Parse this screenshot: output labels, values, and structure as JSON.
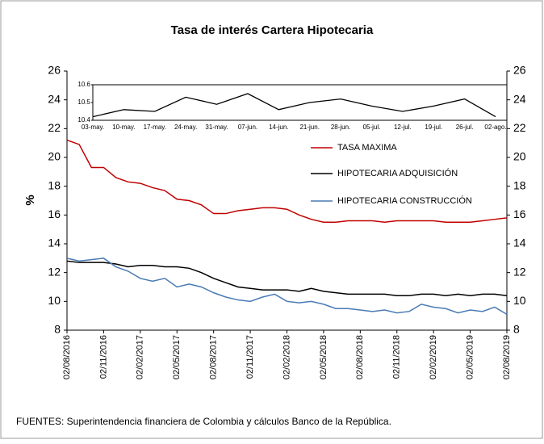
{
  "chart_data": [
    {
      "type": "line",
      "title": "Tasa de interés Cartera Hipotecaria",
      "y_label": "%",
      "note": "FUENTES: Superintendencia financiera de Colombia y cálculos Banco de la República.",
      "categories": [
        "02/08/2016",
        null,
        null,
        "02/11/2016",
        null,
        null,
        "02/02/2017",
        null,
        null,
        "02/05/2017",
        null,
        null,
        "02/08/2017",
        null,
        null,
        "02/11/2017",
        null,
        null,
        "02/02/2018",
        null,
        null,
        "02/05/2018",
        null,
        null,
        "02/08/2018",
        null,
        null,
        "02/11/2018",
        null,
        null,
        "02/02/2019",
        null,
        null,
        "02/05/2019",
        null,
        null,
        "02/08/2019"
      ],
      "ylim": [
        8,
        26
      ],
      "yticks": [
        8,
        10,
        12,
        14,
        16,
        18,
        20,
        22,
        24,
        26
      ],
      "y2lim": [
        8,
        26
      ],
      "y2ticks": [
        8,
        10,
        12,
        14,
        16,
        18,
        20,
        22,
        24,
        26
      ],
      "series": [
        {
          "name": "TASA MAXIMA",
          "color": "#c00000",
          "values": [
            21.2,
            20.9,
            19.3,
            19.3,
            18.6,
            18.3,
            18.2,
            17.9,
            17.7,
            17.1,
            17.0,
            16.7,
            16.1,
            16.1,
            16.3,
            16.4,
            16.5,
            16.5,
            16.4,
            16.0,
            15.7,
            15.5,
            15.5,
            15.6,
            15.6,
            15.6,
            15.5,
            15.6,
            15.6,
            15.6,
            15.6,
            15.5,
            15.5,
            15.5,
            15.6,
            15.7,
            15.8
          ]
        },
        {
          "name": "HIPOTECARIA ADQUISICIÓN",
          "color": "#000000",
          "values": [
            12.8,
            12.7,
            12.7,
            12.7,
            12.6,
            12.4,
            12.5,
            12.5,
            12.4,
            12.4,
            12.3,
            12.0,
            11.6,
            11.3,
            11.0,
            10.9,
            10.8,
            10.8,
            10.8,
            10.7,
            10.9,
            10.7,
            10.6,
            10.5,
            10.5,
            10.5,
            10.5,
            10.4,
            10.4,
            10.5,
            10.5,
            10.4,
            10.5,
            10.4,
            10.5,
            10.5,
            10.4
          ]
        },
        {
          "name": "HIPOTECARIA CONSTRUCCIÓN",
          "color": "#4a7ab5",
          "values": [
            13.0,
            12.8,
            12.9,
            13.0,
            12.4,
            12.1,
            11.6,
            11.4,
            11.6,
            11.0,
            11.2,
            11.0,
            10.6,
            10.3,
            10.1,
            10.0,
            10.3,
            10.5,
            10.0,
            9.9,
            10.0,
            9.8,
            9.5,
            9.5,
            9.4,
            9.3,
            9.4,
            9.2,
            9.3,
            9.8,
            9.6,
            9.5,
            9.2,
            9.4,
            9.3,
            9.6,
            9.1
          ]
        }
      ]
    },
    {
      "type": "line",
      "categories": [
        "03-may.",
        "10-may.",
        "17-may.",
        "24-may.",
        "31-may.",
        "07-jun.",
        "14-jun.",
        "21-jun.",
        "28-jun.",
        "05-jul.",
        "12-jul.",
        "19-jul.",
        "26-jul.",
        "02-ago."
      ],
      "ylim": [
        10.4,
        10.6
      ],
      "yticks": [
        10.4,
        10.5,
        10.6
      ],
      "color": "#000000",
      "values": [
        10.42,
        10.46,
        10.45,
        10.53,
        10.49,
        10.55,
        10.46,
        10.5,
        10.52,
        10.48,
        10.45,
        10.48,
        10.52,
        10.42
      ]
    }
  ]
}
